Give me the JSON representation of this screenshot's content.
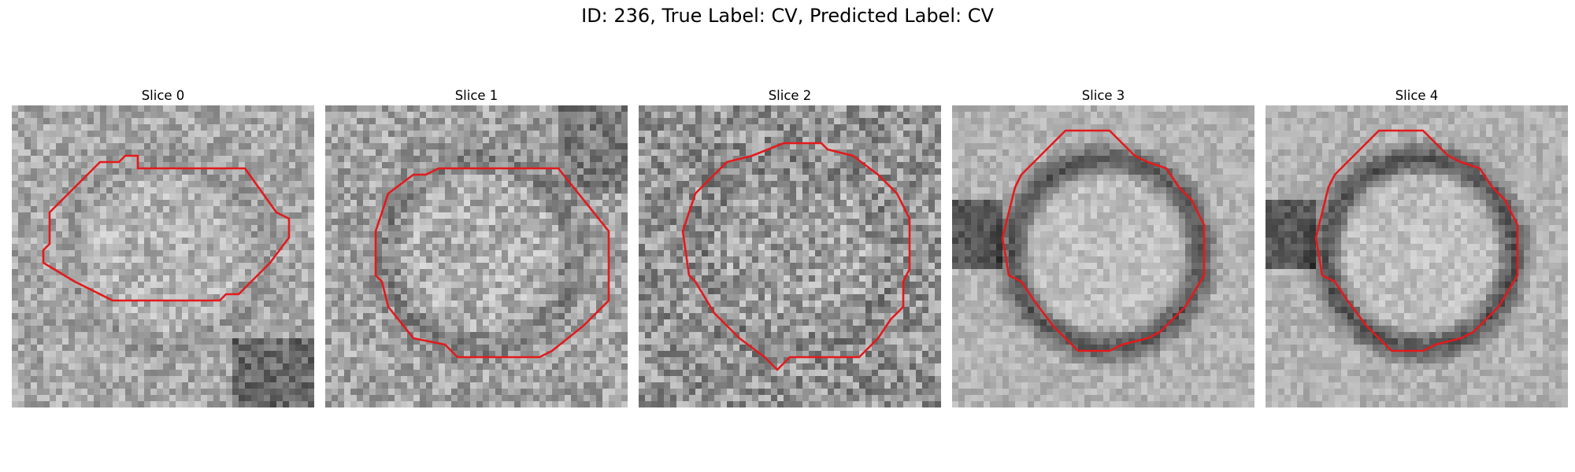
{
  "figure": {
    "title": "ID: 236, True Label: CV, Predicted Label: CV",
    "contour_color": "#e31a1c",
    "colormap": "grayscale"
  },
  "slices": [
    {
      "title": "Slice 0",
      "seed": 11,
      "bg_brightness": 0.66,
      "ring_darkness": 0.06,
      "noise": 0.3,
      "shadow": "bottom-right",
      "contour": [
        [
          20,
          10
        ],
        [
          37,
          10
        ],
        [
          42,
          17
        ],
        [
          44,
          18
        ],
        [
          44,
          21
        ],
        [
          41,
          25
        ],
        [
          36,
          30
        ],
        [
          34,
          30
        ],
        [
          33,
          31
        ],
        [
          16,
          31
        ],
        [
          10,
          28
        ],
        [
          5,
          25
        ],
        [
          5,
          23
        ],
        [
          6,
          22
        ],
        [
          6,
          20
        ],
        [
          6,
          17
        ],
        [
          10,
          13
        ],
        [
          14,
          9
        ],
        [
          17,
          9
        ],
        [
          18,
          8
        ],
        [
          20,
          8
        ]
      ]
    },
    {
      "title": "Slice 1",
      "seed": 23,
      "bg_brightness": 0.64,
      "ring_darkness": 0.12,
      "noise": 0.34,
      "shadow": "top-right",
      "contour": [
        [
          20,
          10
        ],
        [
          37,
          10
        ],
        [
          41,
          15
        ],
        [
          45,
          20
        ],
        [
          45,
          31
        ],
        [
          43,
          33
        ],
        [
          41,
          35
        ],
        [
          36,
          39
        ],
        [
          34,
          40
        ],
        [
          21,
          40
        ],
        [
          19,
          38
        ],
        [
          14,
          37
        ],
        [
          10,
          32
        ],
        [
          9,
          28
        ],
        [
          8,
          27
        ],
        [
          8,
          20
        ],
        [
          10,
          14
        ],
        [
          14,
          11
        ],
        [
          16,
          11
        ],
        [
          18,
          10
        ]
      ]
    },
    {
      "title": "Slice 2",
      "seed": 37,
      "bg_brightness": 0.58,
      "ring_darkness": 0.04,
      "noise": 0.42,
      "shadow": "none",
      "contour": [
        [
          18,
          8
        ],
        [
          23,
          6
        ],
        [
          29,
          6
        ],
        [
          30,
          7
        ],
        [
          34,
          8
        ],
        [
          38,
          11
        ],
        [
          41,
          14
        ],
        [
          43,
          18
        ],
        [
          43,
          26
        ],
        [
          42,
          28
        ],
        [
          42,
          32
        ],
        [
          40,
          34
        ],
        [
          38,
          37
        ],
        [
          35,
          40
        ],
        [
          24,
          40
        ],
        [
          22,
          42
        ],
        [
          21,
          41
        ],
        [
          20,
          40
        ],
        [
          16,
          37
        ],
        [
          12,
          33
        ],
        [
          9,
          28
        ],
        [
          8,
          27
        ],
        [
          7,
          20
        ],
        [
          9,
          14
        ],
        [
          11,
          12
        ],
        [
          14,
          9
        ]
      ]
    },
    {
      "title": "Slice 3",
      "seed": 53,
      "bg_brightness": 0.7,
      "ring_darkness": 0.38,
      "noise": 0.18,
      "shadow": "left",
      "contour": [
        [
          18,
          4
        ],
        [
          25,
          4
        ],
        [
          27,
          6
        ],
        [
          28,
          7
        ],
        [
          29,
          8
        ],
        [
          31,
          9
        ],
        [
          34,
          10
        ],
        [
          36,
          13
        ],
        [
          38,
          15
        ],
        [
          40,
          19
        ],
        [
          40,
          27
        ],
        [
          37,
          32
        ],
        [
          35,
          34
        ],
        [
          33,
          36
        ],
        [
          31,
          37
        ],
        [
          27,
          38
        ],
        [
          25,
          39
        ],
        [
          20,
          39
        ],
        [
          16,
          35
        ],
        [
          13,
          31
        ],
        [
          11,
          28
        ],
        [
          9,
          27
        ],
        [
          8,
          21
        ],
        [
          9,
          17
        ],
        [
          10,
          13
        ],
        [
          11,
          11
        ],
        [
          14,
          8
        ]
      ]
    },
    {
      "title": "Slice 4",
      "seed": 71,
      "bg_brightness": 0.7,
      "ring_darkness": 0.4,
      "noise": 0.18,
      "shadow": "left",
      "contour": [
        [
          18,
          4
        ],
        [
          25,
          4
        ],
        [
          27,
          6
        ],
        [
          28,
          7
        ],
        [
          29,
          8
        ],
        [
          31,
          9
        ],
        [
          34,
          10
        ],
        [
          36,
          13
        ],
        [
          38,
          15
        ],
        [
          40,
          19
        ],
        [
          40,
          27
        ],
        [
          37,
          32
        ],
        [
          35,
          34
        ],
        [
          33,
          36
        ],
        [
          31,
          37
        ],
        [
          27,
          38
        ],
        [
          25,
          39
        ],
        [
          20,
          39
        ],
        [
          16,
          35
        ],
        [
          13,
          31
        ],
        [
          11,
          28
        ],
        [
          9,
          27
        ],
        [
          8,
          21
        ],
        [
          9,
          17
        ],
        [
          10,
          13
        ],
        [
          11,
          11
        ],
        [
          14,
          8
        ]
      ]
    }
  ]
}
